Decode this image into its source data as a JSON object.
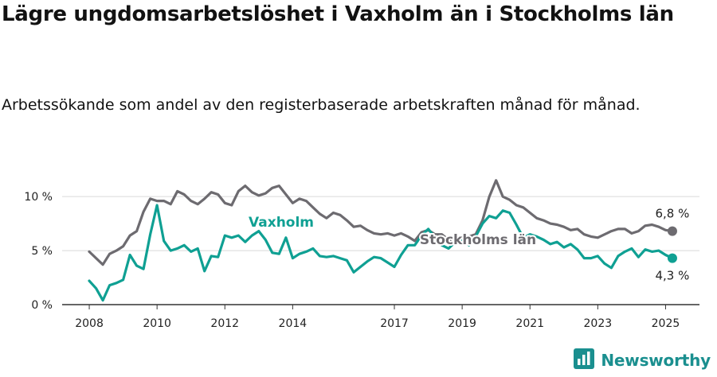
{
  "title": "Lägre ungdomsarbetslöshet i Vaxholm än i Stockholms län",
  "subtitle": "Arbetssökande som andel av den registerbaserade arbetskraften månad för månad.",
  "brand": {
    "name": "Newsworthy",
    "icon": "newsworthy-logo-icon",
    "color": "#1a8f8f"
  },
  "chart_data": {
    "type": "line",
    "xlabel": "",
    "ylabel": "",
    "x_ticks": [
      "2008",
      "2010",
      "2012",
      "2014",
      "2017",
      "2019",
      "2021",
      "2023",
      "2025"
    ],
    "x_tick_years": [
      2008,
      2010,
      2012,
      2014,
      2017,
      2019,
      2021,
      2023,
      2025
    ],
    "y_ticks": [
      "0 %",
      "5 %",
      "10 %"
    ],
    "y_tick_values": [
      0,
      5,
      10
    ],
    "ylim": [
      0,
      12
    ],
    "xlim": [
      2007.2,
      2026.0
    ],
    "grid": true,
    "legend": "direct labels",
    "x_years": [
      2008.0,
      2008.2,
      2008.4,
      2008.6,
      2008.8,
      2009.0,
      2009.2,
      2009.4,
      2009.6,
      2009.8,
      2010.0,
      2010.2,
      2010.4,
      2010.6,
      2010.8,
      2011.0,
      2011.2,
      2011.4,
      2011.6,
      2011.8,
      2012.0,
      2012.2,
      2012.4,
      2012.6,
      2012.8,
      2013.0,
      2013.2,
      2013.4,
      2013.6,
      2013.8,
      2014.0,
      2014.2,
      2014.4,
      2014.6,
      2014.8,
      2015.0,
      2015.2,
      2015.4,
      2015.6,
      2015.8,
      2016.0,
      2016.2,
      2016.4,
      2016.6,
      2016.8,
      2017.0,
      2017.2,
      2017.4,
      2017.6,
      2017.8,
      2018.0,
      2018.2,
      2018.4,
      2018.6,
      2018.8,
      2019.0,
      2019.2,
      2019.4,
      2019.6,
      2019.8,
      2020.0,
      2020.2,
      2020.4,
      2020.6,
      2020.8,
      2021.0,
      2021.2,
      2021.4,
      2021.6,
      2021.8,
      2022.0,
      2022.2,
      2022.4,
      2022.6,
      2022.8,
      2023.0,
      2023.2,
      2023.4,
      2023.6,
      2023.8,
      2024.0,
      2024.2,
      2024.4,
      2024.6,
      2024.8,
      2025.0,
      2025.2
    ],
    "series": [
      {
        "name": "Stockholms län",
        "color": "#6d6b70",
        "values": [
          4.9,
          4.3,
          3.7,
          4.7,
          5.0,
          5.4,
          6.4,
          6.8,
          8.6,
          9.8,
          9.6,
          9.6,
          9.3,
          10.5,
          10.2,
          9.6,
          9.3,
          9.8,
          10.4,
          10.2,
          9.4,
          9.2,
          10.5,
          11.0,
          10.4,
          10.1,
          10.3,
          10.8,
          11.0,
          10.2,
          9.4,
          9.8,
          9.6,
          9.0,
          8.4,
          8.0,
          8.5,
          8.3,
          7.8,
          7.2,
          7.3,
          6.9,
          6.6,
          6.5,
          6.6,
          6.4,
          6.6,
          6.3,
          5.9,
          6.7,
          6.9,
          6.5,
          6.5,
          6.0,
          6.0,
          5.6,
          6.3,
          6.5,
          7.8,
          10.0,
          11.5,
          10.0,
          9.7,
          9.2,
          9.0,
          8.5,
          8.0,
          7.8,
          7.5,
          7.4,
          7.2,
          6.9,
          7.0,
          6.5,
          6.3,
          6.2,
          6.5,
          6.8,
          7.0,
          7.0,
          6.6,
          6.8,
          7.3,
          7.4,
          7.2,
          6.9,
          6.8
        ]
      },
      {
        "name": "Vaxholm",
        "color": "#0fa093",
        "values": [
          2.2,
          1.5,
          0.4,
          1.8,
          2.0,
          2.3,
          4.6,
          3.6,
          3.3,
          6.5,
          9.2,
          5.9,
          5.0,
          5.2,
          5.5,
          4.9,
          5.2,
          3.1,
          4.5,
          4.4,
          6.4,
          6.2,
          6.4,
          5.8,
          6.4,
          6.8,
          6.0,
          4.8,
          4.7,
          6.2,
          4.3,
          4.7,
          4.9,
          5.2,
          4.5,
          4.4,
          4.5,
          4.3,
          4.1,
          3.0,
          3.5,
          4.0,
          4.4,
          4.3,
          3.9,
          3.5,
          4.6,
          5.5,
          5.5,
          6.4,
          7.0,
          6.2,
          5.5,
          5.2,
          5.8,
          6.0,
          5.5,
          6.3,
          7.5,
          8.2,
          8.0,
          8.7,
          8.5,
          7.4,
          6.2,
          6.5,
          6.3,
          6.0,
          5.6,
          5.8,
          5.3,
          5.6,
          5.1,
          4.3,
          4.3,
          4.5,
          3.8,
          3.4,
          4.5,
          4.9,
          5.2,
          4.4,
          5.1,
          4.9,
          5.0,
          4.6,
          4.3
        ]
      }
    ],
    "end_labels": [
      {
        "series": "Stockholms län",
        "text": "6,8 %"
      },
      {
        "series": "Vaxholm",
        "text": "4,3 %"
      }
    ]
  }
}
